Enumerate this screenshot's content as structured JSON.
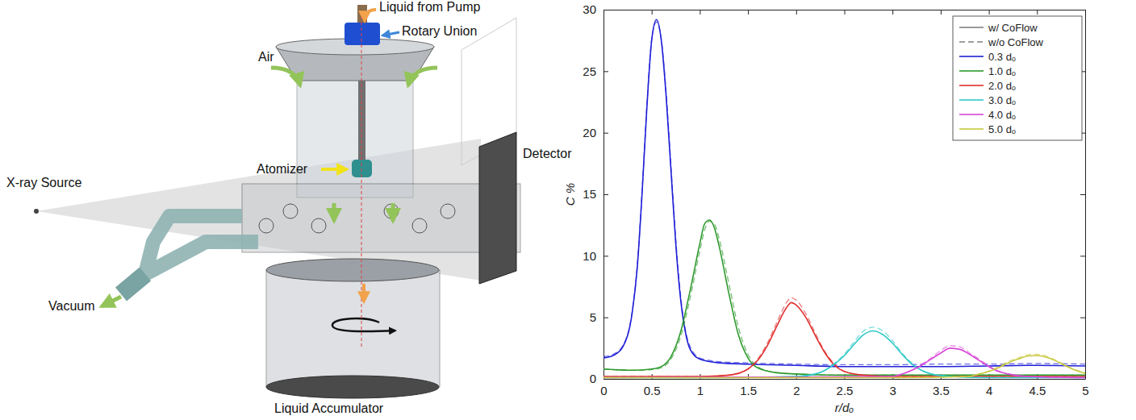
{
  "diagram": {
    "labels": [
      "Liquid from Pump",
      "Rotary Union",
      "Air",
      "Detector",
      "X-ray Source",
      "Atomizer",
      "Vacuum",
      "Liquid Accumulator"
    ]
  },
  "chart_data": {
    "type": "line",
    "x_label": "r/dₒ",
    "y_label": "C %",
    "xlim": [
      0,
      5
    ],
    "xticks": [
      0,
      0.5,
      1,
      1.5,
      2,
      2.5,
      3,
      3.5,
      4,
      4.5,
      5
    ],
    "ylim": [
      0,
      30
    ],
    "yticks": [
      0,
      5,
      10,
      15,
      20,
      25,
      30
    ],
    "grid": false,
    "legend": "top-right",
    "line_styles": [
      {
        "name": "w/ CoFlow",
        "line_style": "solid",
        "color": "#808080"
      },
      {
        "name": "w/o CoFlow",
        "line_style": "dashed",
        "color": "#808080"
      }
    ],
    "series": [
      {
        "name": "0.3 dₒ",
        "color": "#2020d8",
        "line_style": "solid",
        "x": [
          0,
          0.1,
          0.2,
          0.3,
          0.35,
          0.4,
          0.45,
          0.5,
          0.55,
          0.6,
          0.65,
          0.7,
          0.75,
          0.8,
          0.85,
          0.9,
          1.0,
          1.2,
          1.5,
          2,
          2.5,
          3,
          3.5,
          4,
          4.5,
          5
        ],
        "values": [
          1.7,
          1.9,
          2.6,
          5.5,
          9.0,
          15.0,
          22.0,
          27.5,
          29.2,
          27.5,
          23.0,
          17.0,
          11.0,
          6.5,
          3.8,
          2.4,
          1.6,
          1.3,
          1.2,
          1.1,
          1.0,
          1.0,
          1.0,
          1.05,
          1.1,
          1.05
        ]
      },
      {
        "name": "0.3 dₒ",
        "color": "#2020d8",
        "line_style": "dashed",
        "x": [
          0,
          0.1,
          0.2,
          0.3,
          0.35,
          0.4,
          0.45,
          0.5,
          0.55,
          0.6,
          0.65,
          0.7,
          0.75,
          0.8,
          0.85,
          0.9,
          1.0,
          1.2,
          1.5,
          2,
          2.5,
          3,
          3.5,
          4,
          4.5,
          5
        ],
        "values": [
          1.8,
          2.0,
          2.7,
          5.6,
          9.2,
          15.2,
          22.2,
          27.6,
          29.0,
          27.6,
          23.3,
          17.4,
          11.4,
          6.8,
          4.0,
          2.6,
          1.7,
          1.4,
          1.3,
          1.2,
          1.15,
          1.15,
          1.2,
          1.2,
          1.25,
          1.2
        ]
      },
      {
        "name": "1.0 dₒ",
        "color": "#2e9a2e",
        "line_style": "solid",
        "x": [
          0,
          0.3,
          0.5,
          0.6,
          0.7,
          0.8,
          0.9,
          1.0,
          1.05,
          1.1,
          1.15,
          1.2,
          1.3,
          1.4,
          1.5,
          1.6,
          1.8,
          2,
          2.5,
          3,
          3.5,
          4,
          4.5,
          5
        ],
        "values": [
          0.8,
          0.7,
          0.8,
          1.0,
          1.8,
          3.8,
          7.2,
          11.0,
          12.6,
          12.9,
          12.3,
          10.8,
          7.0,
          3.6,
          1.7,
          0.9,
          0.5,
          0.4,
          0.3,
          0.3,
          0.3,
          0.3,
          0.3,
          0.3
        ]
      },
      {
        "name": "1.0 dₒ",
        "color": "#2e9a2e",
        "line_style": "dashed",
        "x": [
          0,
          0.3,
          0.5,
          0.6,
          0.7,
          0.8,
          0.9,
          1.0,
          1.05,
          1.1,
          1.15,
          1.2,
          1.3,
          1.4,
          1.5,
          1.6,
          1.8,
          2,
          2.5,
          3,
          3.5,
          4,
          4.5,
          5
        ],
        "values": [
          0.8,
          0.7,
          0.75,
          0.9,
          1.6,
          3.4,
          6.6,
          10.4,
          12.1,
          12.8,
          12.6,
          11.4,
          7.8,
          4.2,
          2.0,
          1.0,
          0.5,
          0.4,
          0.3,
          0.3,
          0.3,
          0.3,
          0.3,
          0.3
        ]
      },
      {
        "name": "2.0 dₒ",
        "color": "#e0302f",
        "line_style": "solid",
        "x": [
          0,
          0.5,
          1,
          1.3,
          1.5,
          1.6,
          1.7,
          1.8,
          1.9,
          1.95,
          2.0,
          2.1,
          2.2,
          2.3,
          2.4,
          2.5,
          2.7,
          3,
          3.5,
          4,
          4.5,
          5
        ],
        "values": [
          0.2,
          0.2,
          0.2,
          0.3,
          0.8,
          1.5,
          2.7,
          4.3,
          5.8,
          6.2,
          6.0,
          5.0,
          3.5,
          2.1,
          1.1,
          0.6,
          0.3,
          0.2,
          0.2,
          0.2,
          0.2,
          0.2
        ]
      },
      {
        "name": "2.0 dₒ",
        "color": "#e0302f",
        "line_style": "dashed",
        "x": [
          0,
          0.5,
          1,
          1.3,
          1.5,
          1.6,
          1.7,
          1.8,
          1.9,
          1.95,
          2.0,
          2.1,
          2.2,
          2.3,
          2.4,
          2.5,
          2.7,
          3,
          3.5,
          4,
          4.5,
          5
        ],
        "values": [
          0.2,
          0.2,
          0.2,
          0.3,
          0.8,
          1.6,
          2.9,
          4.6,
          6.2,
          6.6,
          6.4,
          5.3,
          3.7,
          2.2,
          1.2,
          0.6,
          0.3,
          0.2,
          0.2,
          0.2,
          0.2,
          0.2
        ]
      },
      {
        "name": "3.0 dₒ",
        "color": "#30c8c8",
        "line_style": "solid",
        "x": [
          0,
          1,
          2,
          2.2,
          2.3,
          2.4,
          2.5,
          2.6,
          2.7,
          2.8,
          2.9,
          3.0,
          3.1,
          3.2,
          3.3,
          3.4,
          3.6,
          4,
          4.5,
          5
        ],
        "values": [
          0.1,
          0.1,
          0.2,
          0.4,
          0.7,
          1.2,
          1.9,
          2.8,
          3.6,
          3.9,
          3.6,
          2.9,
          2.0,
          1.2,
          0.7,
          0.4,
          0.2,
          0.1,
          0.1,
          0.1
        ]
      },
      {
        "name": "3.0 dₒ",
        "color": "#30c8c8",
        "line_style": "dashed",
        "x": [
          0,
          1,
          2,
          2.2,
          2.3,
          2.4,
          2.5,
          2.6,
          2.7,
          2.8,
          2.9,
          3.0,
          3.1,
          3.2,
          3.3,
          3.4,
          3.6,
          4,
          4.5,
          5
        ],
        "values": [
          0.1,
          0.1,
          0.2,
          0.4,
          0.7,
          1.3,
          2.0,
          3.0,
          3.9,
          4.2,
          3.9,
          3.1,
          2.1,
          1.3,
          0.7,
          0.4,
          0.2,
          0.1,
          0.1,
          0.1
        ]
      },
      {
        "name": "4.0 dₒ",
        "color": "#d946d9",
        "line_style": "solid",
        "x": [
          0,
          1,
          2,
          3,
          3.1,
          3.2,
          3.3,
          3.4,
          3.5,
          3.6,
          3.7,
          3.8,
          3.9,
          4.0,
          4.1,
          4.2,
          4.4,
          5
        ],
        "values": [
          0.1,
          0.15,
          0.15,
          0.2,
          0.4,
          0.7,
          1.1,
          1.6,
          2.1,
          2.5,
          2.4,
          2.0,
          1.5,
          1.0,
          0.6,
          0.4,
          0.2,
          0.1
        ]
      },
      {
        "name": "4.0 dₒ",
        "color": "#d946d9",
        "line_style": "dashed",
        "x": [
          0,
          1,
          2,
          3,
          3.1,
          3.2,
          3.3,
          3.4,
          3.5,
          3.6,
          3.7,
          3.8,
          3.9,
          4.0,
          4.1,
          4.2,
          4.4,
          5
        ],
        "values": [
          0.1,
          0.15,
          0.15,
          0.2,
          0.4,
          0.7,
          1.2,
          1.7,
          2.3,
          2.7,
          2.6,
          2.1,
          1.6,
          1.05,
          0.65,
          0.4,
          0.2,
          0.1
        ]
      },
      {
        "name": "5.0 dₒ",
        "color": "#c9c940",
        "line_style": "solid",
        "x": [
          0,
          1,
          2,
          3,
          3.8,
          3.9,
          4.0,
          4.1,
          4.2,
          4.3,
          4.4,
          4.5,
          4.6,
          4.7,
          4.8,
          4.9,
          5.0
        ],
        "values": [
          0.1,
          0.1,
          0.1,
          0.1,
          0.2,
          0.4,
          0.6,
          0.9,
          1.3,
          1.6,
          1.85,
          1.9,
          1.75,
          1.45,
          1.05,
          0.7,
          0.45
        ]
      },
      {
        "name": "5.0 dₒ",
        "color": "#c9c940",
        "line_style": "dashed",
        "x": [
          0,
          1,
          2,
          3,
          3.8,
          3.9,
          4.0,
          4.1,
          4.2,
          4.3,
          4.4,
          4.5,
          4.6,
          4.7,
          4.8,
          4.9,
          5.0
        ],
        "values": [
          0.1,
          0.1,
          0.1,
          0.1,
          0.2,
          0.4,
          0.65,
          1.0,
          1.4,
          1.7,
          1.95,
          2.0,
          1.85,
          1.5,
          1.1,
          0.75,
          0.5
        ]
      }
    ]
  }
}
